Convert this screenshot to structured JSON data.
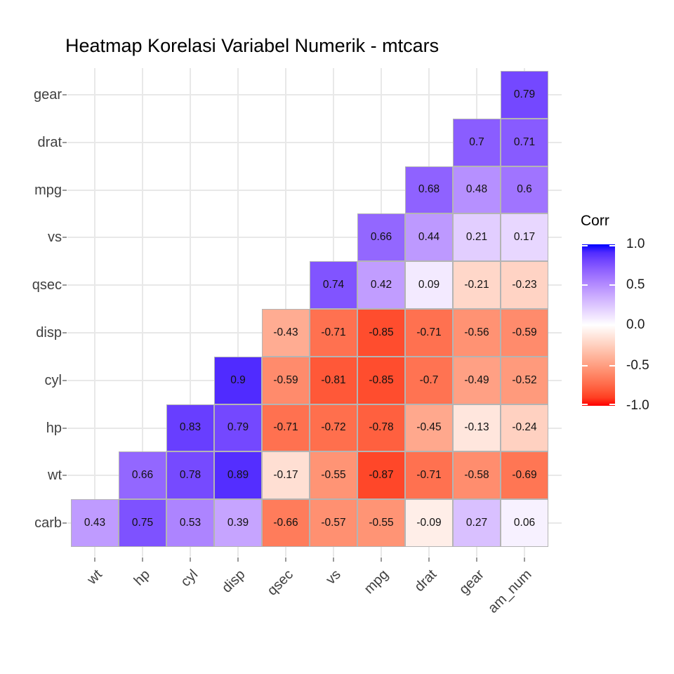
{
  "title": "Heatmap Korelasi Variabel Numerik - mtcars",
  "chart_data": {
    "type": "heatmap",
    "title": "Heatmap Korelasi Variabel Numerik - mtcars",
    "x_categories": [
      "wt",
      "hp",
      "cyl",
      "disp",
      "qsec",
      "vs",
      "mpg",
      "drat",
      "gear",
      "am_num"
    ],
    "y_categories": [
      "gear",
      "drat",
      "mpg",
      "vs",
      "qsec",
      "disp",
      "cyl",
      "hp",
      "wt",
      "carb"
    ],
    "matrix": [
      [
        null,
        null,
        null,
        null,
        null,
        null,
        null,
        null,
        null,
        0.79
      ],
      [
        null,
        null,
        null,
        null,
        null,
        null,
        null,
        null,
        0.7,
        0.71
      ],
      [
        null,
        null,
        null,
        null,
        null,
        null,
        null,
        0.68,
        0.48,
        0.6
      ],
      [
        null,
        null,
        null,
        null,
        null,
        null,
        0.66,
        0.44,
        0.21,
        0.17
      ],
      [
        null,
        null,
        null,
        null,
        null,
        0.74,
        0.42,
        0.09,
        -0.21,
        -0.23
      ],
      [
        null,
        null,
        null,
        null,
        -0.43,
        -0.71,
        -0.85,
        -0.71,
        -0.56,
        -0.59
      ],
      [
        null,
        null,
        null,
        0.9,
        -0.59,
        -0.81,
        -0.85,
        -0.7,
        -0.49,
        -0.52
      ],
      [
        null,
        null,
        0.83,
        0.79,
        -0.71,
        -0.72,
        -0.78,
        -0.45,
        -0.13,
        -0.24
      ],
      [
        null,
        0.66,
        0.78,
        0.89,
        -0.17,
        -0.55,
        -0.87,
        -0.71,
        -0.58,
        -0.69
      ],
      [
        0.43,
        0.75,
        0.53,
        0.39,
        -0.66,
        -0.57,
        -0.55,
        -0.09,
        0.27,
        0.06
      ]
    ],
    "legend": {
      "title": "Corr",
      "ticks": [
        "1.0",
        "0.5",
        "0.0",
        "-0.5",
        "-1.0"
      ],
      "limits": [
        -1,
        1
      ],
      "position": "right"
    },
    "colors": {
      "low": "#FF0000",
      "mid": "#FFFFFF",
      "high": "#0000FF",
      "grid": "#E8E8E8",
      "cell_border": "#B4B4B4",
      "axis_text": "#404040",
      "title_text": "#000000",
      "cell_text": "#111111",
      "background": "#FFFFFF"
    },
    "grid": true
  }
}
